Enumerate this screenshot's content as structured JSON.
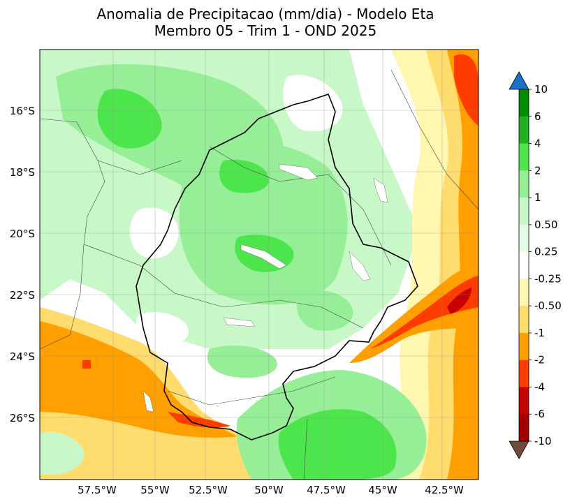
{
  "title": {
    "line1": "Anomalia de Precipitacao (mm/dia) - Modelo Eta",
    "line2": "Membro 05 - Trim 1 - OND 2025"
  },
  "axes": {
    "lat_labels": [
      "16°S",
      "18°S",
      "20°S",
      "22°S",
      "24°S",
      "26°S"
    ],
    "lon_labels": [
      "57.5°W",
      "55°W",
      "52.5°W",
      "50°W",
      "47.5°W",
      "45°W",
      "42.5°W"
    ]
  },
  "colorbar": {
    "labels": [
      "10",
      "6",
      "4",
      "2",
      "1",
      "0.50",
      "0.25",
      "-0.25",
      "-0.50",
      "-1",
      "-2",
      "-4",
      "-6",
      "-10"
    ],
    "colors_top_to_bottom": [
      "#1a6fc9",
      "#008c00",
      "#22b022",
      "#4ce64c",
      "#96ee96",
      "#c8f8c8",
      "#e4fae4",
      "#ffffff",
      "#fff7b0",
      "#ffdc6e",
      "#ffa000",
      "#ff3c00",
      "#c80000",
      "#a00000",
      "#6e4b3c"
    ]
  },
  "palette": {
    "green_light": "#c8f8c8",
    "green_mid": "#96ee96",
    "green_strong": "#4ce64c",
    "yellow_light": "#fff7b0",
    "yellow": "#ffdc6e",
    "orange": "#ffa000",
    "red": "#ff3c00",
    "dark_red": "#c80000"
  }
}
